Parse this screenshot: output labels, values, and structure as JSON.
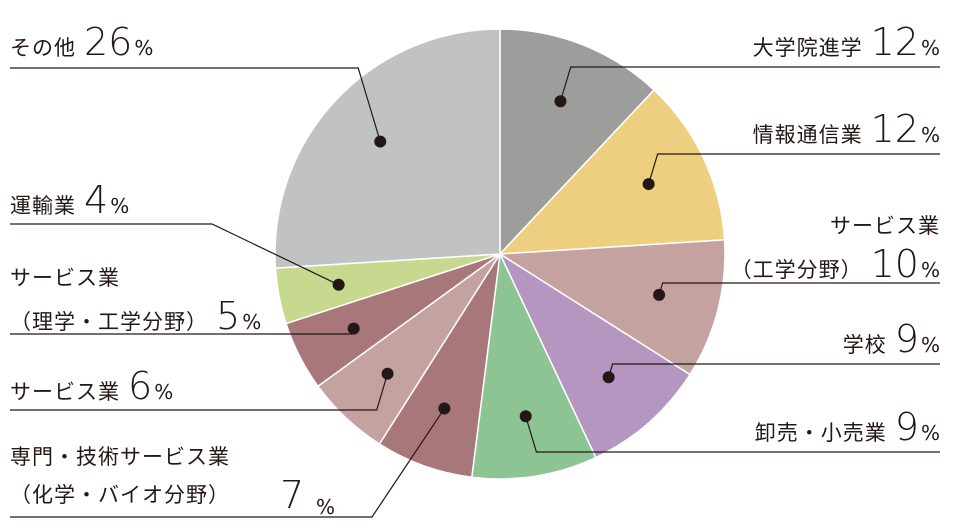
{
  "chart_data": {
    "type": "pie",
    "unit": "%",
    "slices": [
      {
        "label": "大学院進学",
        "value": 12,
        "color": "#9d9e9c"
      },
      {
        "label": "情報通信業",
        "value": 12,
        "color": "#eecf7f"
      },
      {
        "label_lines": [
          "サービス業",
          "（工学分野）"
        ],
        "value": 10,
        "color": "#c4a29f"
      },
      {
        "label": "学校",
        "value": 9,
        "color": "#b496c0"
      },
      {
        "label": "卸売・小売業",
        "value": 9,
        "color": "#8cc493"
      },
      {
        "label_lines": [
          "専門・技術サービス業",
          "（化学・バイオ分野）"
        ],
        "value": 7,
        "color": "#a8777a"
      },
      {
        "label": "サービス業",
        "value": 6,
        "color": "#c4a29f"
      },
      {
        "label_lines": [
          "サービス業",
          "（理学・工学分野）"
        ],
        "value": 5,
        "color": "#a8777a"
      },
      {
        "label": "運輸業",
        "value": 4,
        "color": "#c7d98e"
      },
      {
        "label": "その他",
        "value": 26,
        "color": "#c1c2c4"
      }
    ]
  }
}
